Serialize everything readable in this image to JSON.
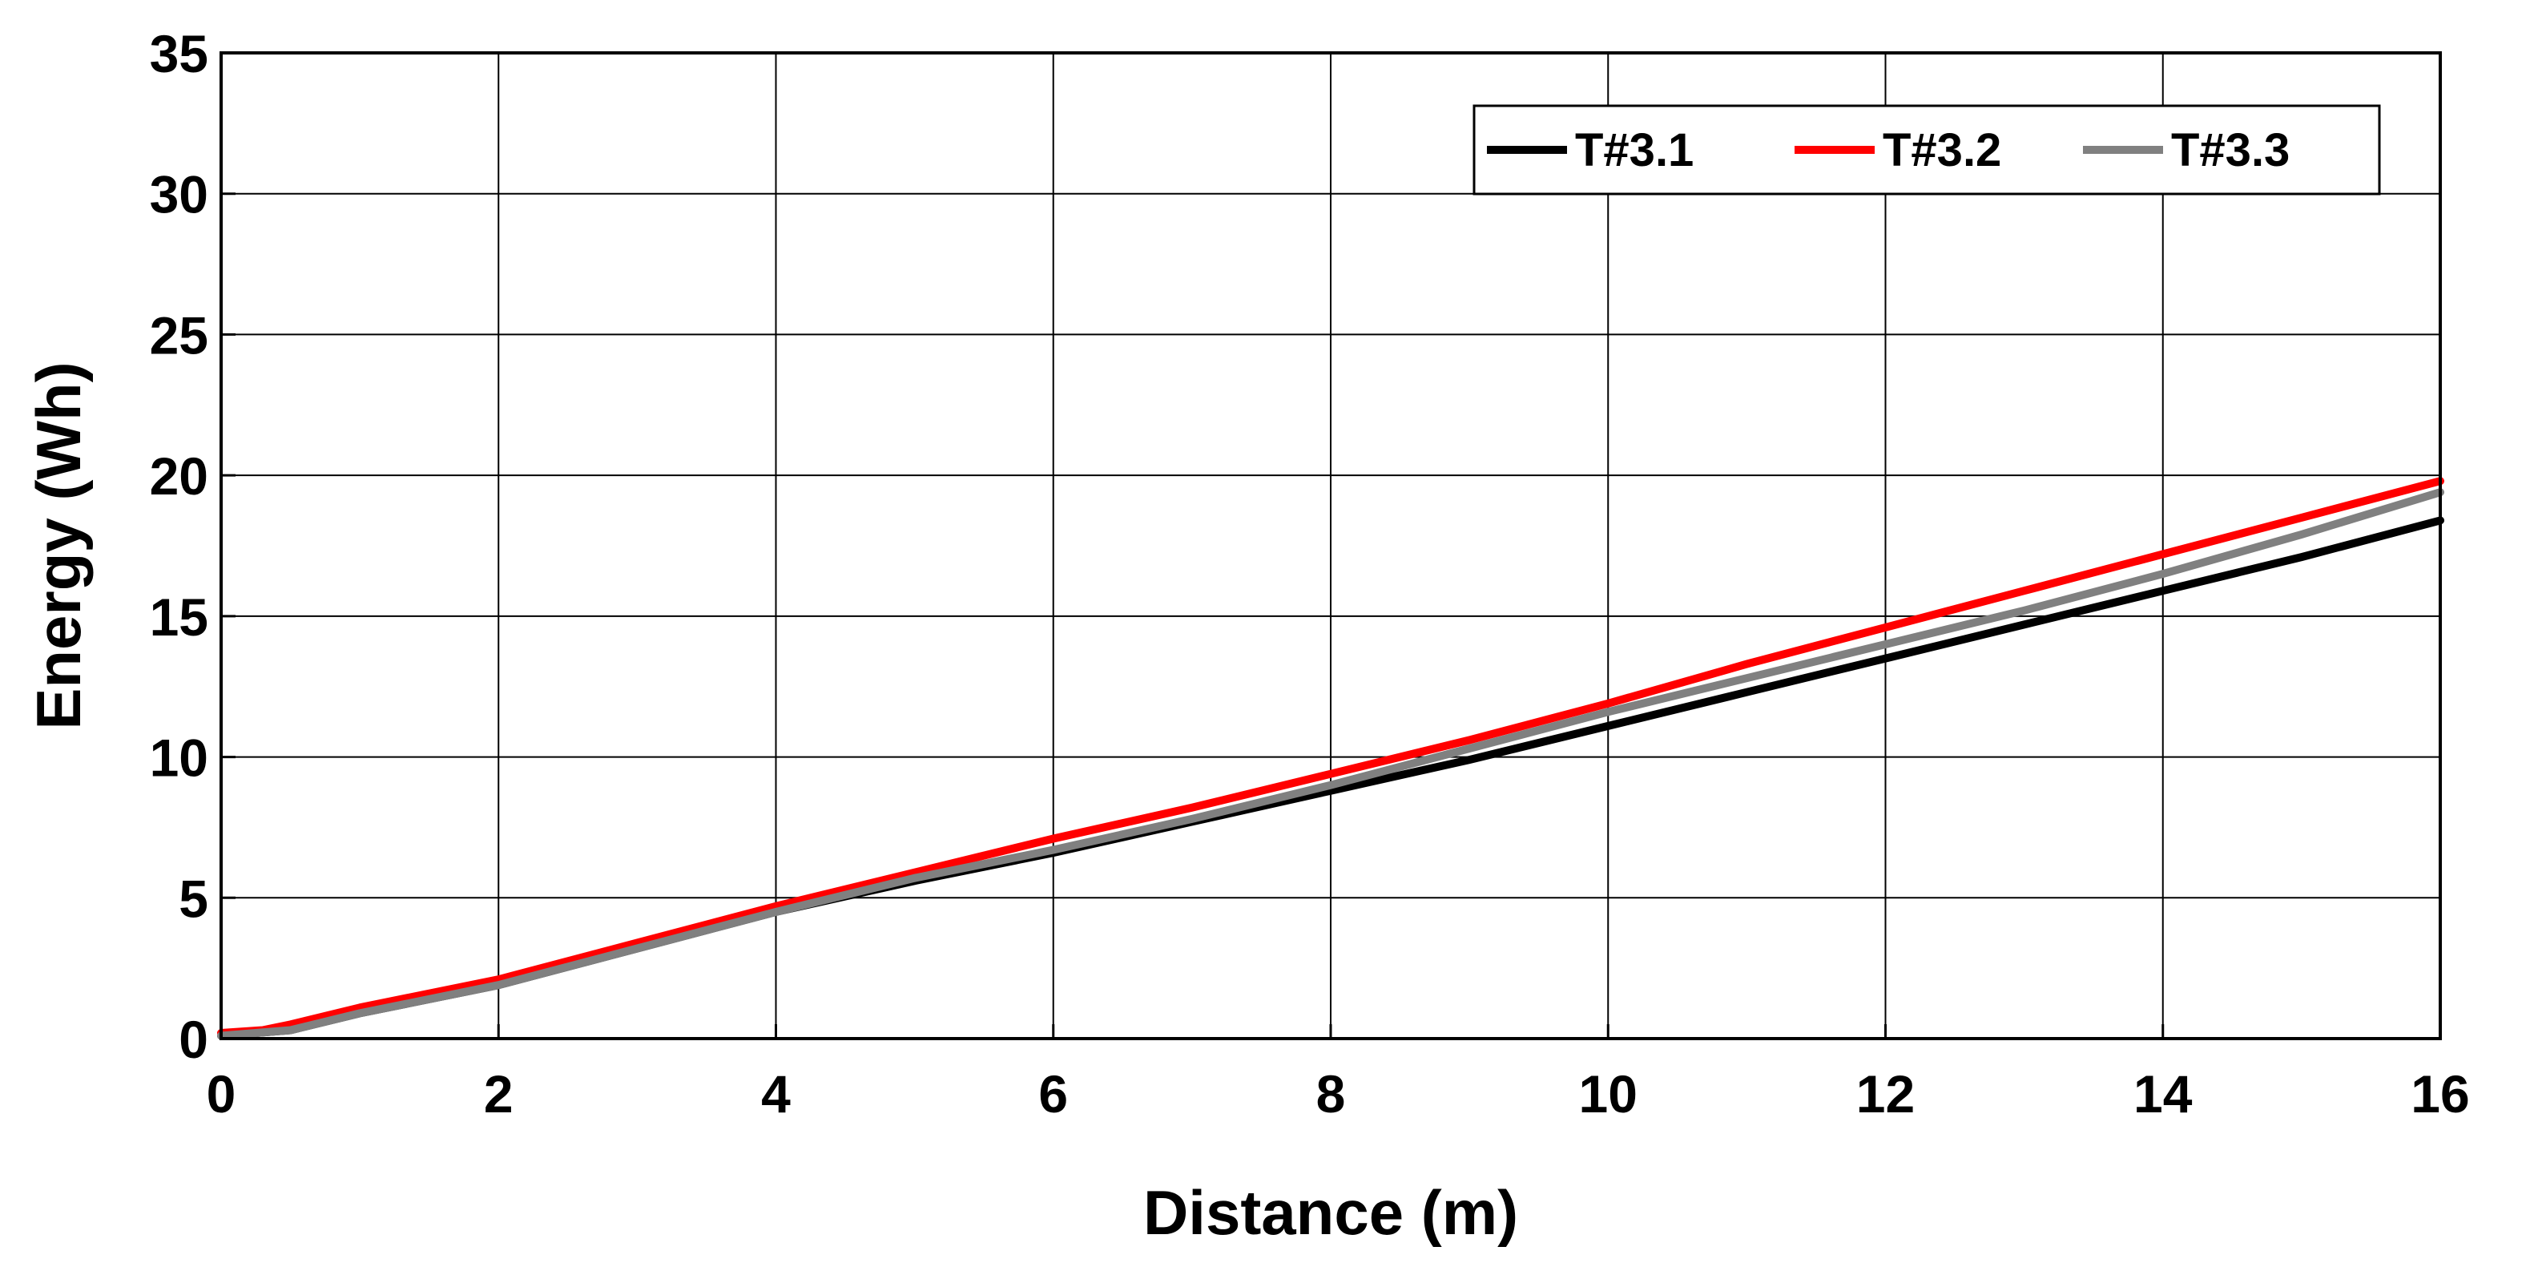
{
  "chart_data": {
    "type": "line",
    "title": "",
    "xlabel": "Distance (m)",
    "ylabel": "Energy (Wh)",
    "xlim": [
      0,
      16
    ],
    "ylim": [
      0,
      35
    ],
    "xticks": [
      0,
      2,
      4,
      6,
      8,
      10,
      12,
      14,
      16
    ],
    "yticks": [
      0,
      5,
      10,
      15,
      20,
      25,
      30,
      35
    ],
    "grid": true,
    "legend": {
      "position": "top-right",
      "orientation": "horizontal"
    },
    "series": [
      {
        "name": "T#3.1",
        "color": "#000000",
        "x": [
          0,
          0.5,
          1,
          2,
          3,
          4,
          5,
          6,
          7,
          8,
          9,
          10,
          11,
          12,
          13,
          14,
          15,
          16
        ],
        "y": [
          0.1,
          0.3,
          0.9,
          1.9,
          3.2,
          4.5,
          5.6,
          6.6,
          7.7,
          8.8,
          9.9,
          11.1,
          12.3,
          13.5,
          14.7,
          15.9,
          17.1,
          18.4
        ]
      },
      {
        "name": "T#3.2",
        "color": "#ff0000",
        "x": [
          0,
          0.3,
          0.5,
          1,
          2,
          3,
          4,
          5,
          6,
          7,
          8,
          9,
          10,
          11,
          12,
          13,
          14,
          15,
          16
        ],
        "y": [
          0.2,
          0.3,
          0.5,
          1.1,
          2.1,
          3.4,
          4.7,
          5.9,
          7.1,
          8.2,
          9.4,
          10.6,
          11.9,
          13.3,
          14.6,
          15.9,
          17.2,
          18.5,
          19.8
        ]
      },
      {
        "name": "T#3.3",
        "color": "#808080",
        "x": [
          0,
          0.5,
          1,
          2,
          3,
          4,
          5,
          6,
          7,
          8,
          9,
          10,
          11,
          12,
          13,
          14,
          15,
          16
        ],
        "y": [
          0.1,
          0.3,
          0.9,
          1.9,
          3.2,
          4.5,
          5.7,
          6.7,
          7.8,
          9.0,
          10.3,
          11.6,
          12.8,
          14.0,
          15.2,
          16.5,
          17.9,
          19.4
        ]
      }
    ]
  }
}
